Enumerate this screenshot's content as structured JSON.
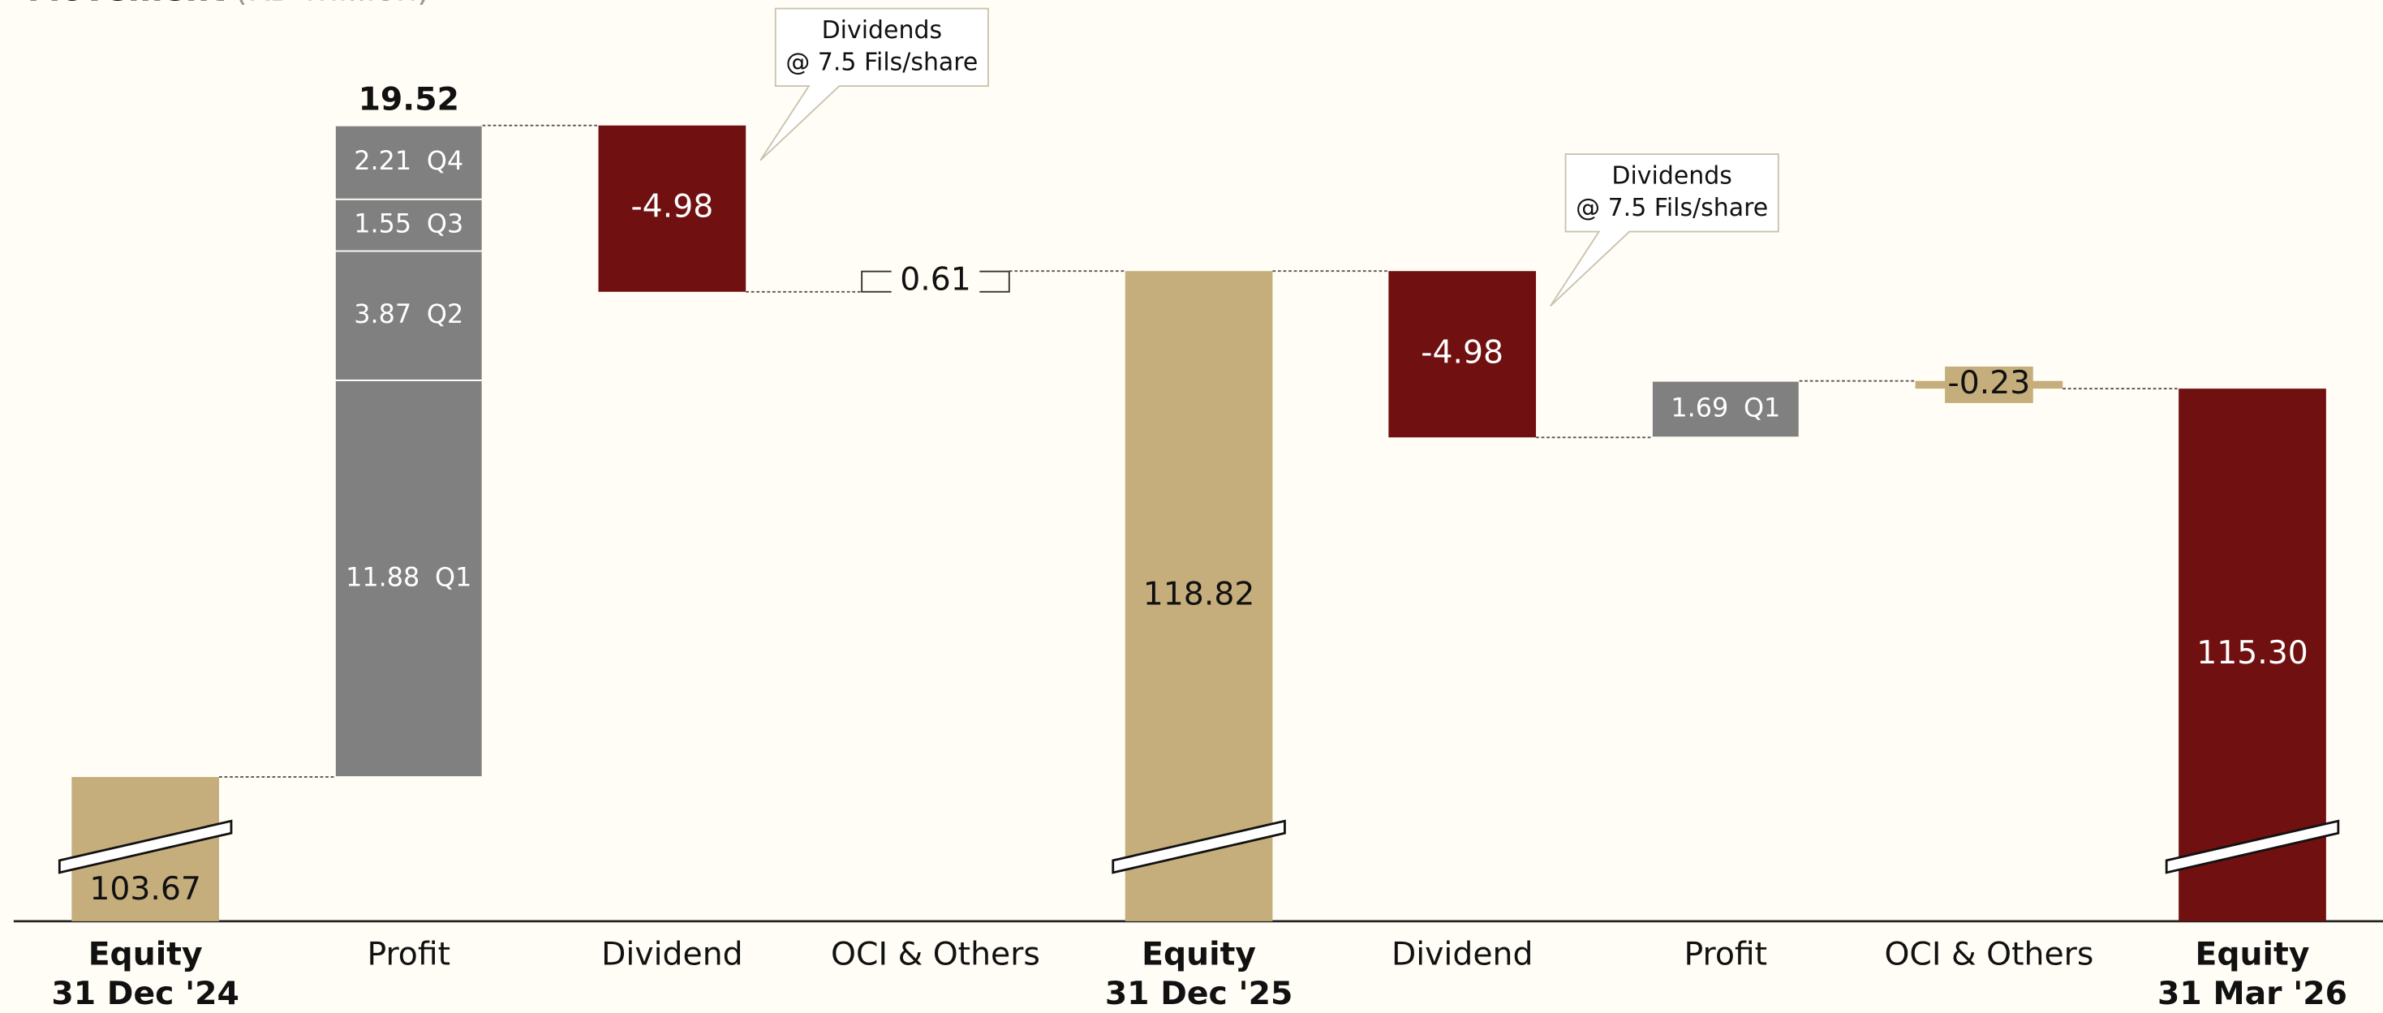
{
  "chart_data": {
    "type": "waterfall",
    "title": "Movement",
    "subtitle": "(KD million)",
    "ylim": [
      99.35,
      126.92
    ],
    "axis_break": true,
    "steps": [
      {
        "kind": "total",
        "value": 103.67,
        "color": "#c5ae7c"
      },
      {
        "kind": "delta",
        "segments": [
          {
            "name": "Q1",
            "value": 11.88
          },
          {
            "name": "Q2",
            "value": 3.87
          },
          {
            "name": "Q3",
            "value": 1.55
          },
          {
            "name": "Q4",
            "value": 2.21
          }
        ],
        "total": 19.52,
        "color": "#808080"
      },
      {
        "kind": "delta",
        "value": -4.98,
        "color": "#701010"
      },
      {
        "kind": "delta",
        "value": 0.61,
        "color": "#fffdf5",
        "outline": true
      },
      {
        "kind": "total",
        "value": 118.82,
        "color": "#c5ae7c"
      },
      {
        "kind": "delta",
        "value": -4.98,
        "color": "#701010"
      },
      {
        "kind": "delta",
        "segments": [
          {
            "name": "Q1",
            "value": 1.69
          }
        ],
        "color": "#808080"
      },
      {
        "kind": "delta",
        "value": -0.23,
        "color": "#c5ae7c"
      },
      {
        "kind": "total",
        "value": 115.3,
        "value_label": "115.30",
        "color": "#701010"
      }
    ],
    "categories": [
      [
        "Equity",
        "31 Dec '24"
      ],
      [
        "Profit"
      ],
      [
        "Dividend"
      ],
      [
        "OCI & Others"
      ],
      [
        "Equity",
        "31 Dec '25"
      ],
      [
        "Dividend"
      ],
      [
        "Profit"
      ],
      [
        "OCI & Others"
      ],
      [
        "Equity",
        "31 Mar '26"
      ]
    ],
    "annotations": [
      {
        "step": 2,
        "lines": [
          "Dividends",
          "@ 7.5 Fils/share"
        ]
      },
      {
        "step": 5,
        "lines": [
          "Dividends",
          "@ 7.5 Fils/share"
        ]
      }
    ]
  }
}
